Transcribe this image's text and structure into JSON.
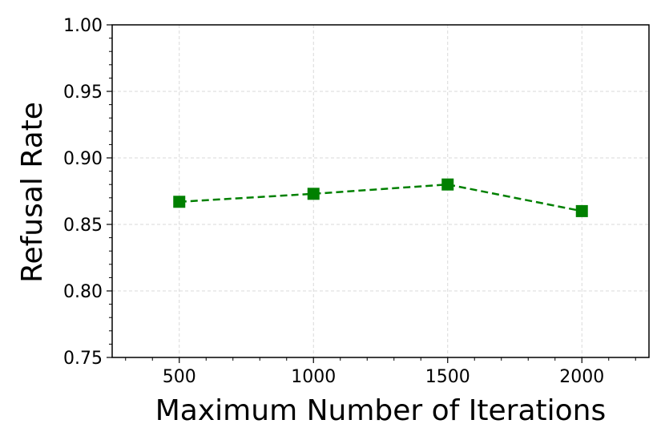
{
  "chart_data": {
    "type": "line",
    "title": "",
    "xlabel": "Maximum Number of Iterations",
    "ylabel": "Refusal Rate",
    "xlim": [
      250,
      2250
    ],
    "ylim": [
      0.75,
      1.0
    ],
    "x_ticks": [
      500,
      1000,
      1500,
      2000
    ],
    "x_tick_labels": [
      "500",
      "1000",
      "1500",
      "2000"
    ],
    "y_ticks": [
      0.75,
      0.8,
      0.85,
      0.9,
      0.95,
      1.0
    ],
    "y_tick_labels": [
      "0.75",
      "0.80",
      "0.85",
      "0.90",
      "0.95",
      "1.00"
    ],
    "grid": true,
    "series": [
      {
        "x": [
          500,
          1000,
          1500,
          2000
        ],
        "values": [
          0.867,
          0.873,
          0.88,
          0.86
        ],
        "color": "#008000",
        "line_style": "dashed",
        "marker": "square"
      }
    ]
  }
}
